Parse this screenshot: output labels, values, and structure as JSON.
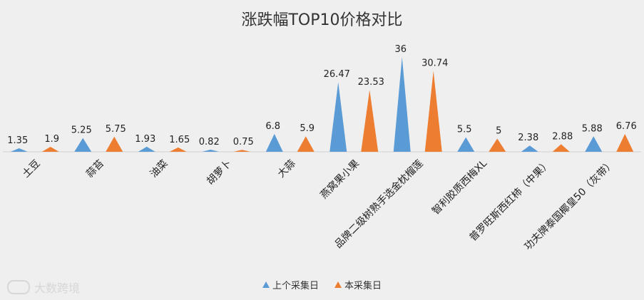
{
  "chart_data": {
    "type": "bar",
    "title": "涨跌幅TOP10价格对比",
    "categories": [
      "土豆",
      "蒜苔",
      "油菜",
      "胡萝卜",
      "大蒜",
      "燕窝果小果",
      "品牌二级树熟手选金枕榴莲",
      "智利胶质西梅XL",
      "普罗旺斯西红柿（中果）",
      "功夫牌泰国椰皇50（灰带）"
    ],
    "series": [
      {
        "name": "上个采集日",
        "color": "#5b9bd5",
        "values": [
          1.35,
          5.25,
          1.93,
          0.82,
          6.8,
          26.47,
          36,
          5.5,
          2.38,
          5.88
        ]
      },
      {
        "name": "本采集日",
        "color": "#ed7d31",
        "values": [
          1.9,
          5.75,
          1.65,
          0.75,
          5.9,
          23.53,
          30.74,
          5,
          2.88,
          6.76
        ]
      }
    ],
    "legend_position": "bottom",
    "grid": false
  },
  "watermark": {
    "text": "大数跨境"
  }
}
